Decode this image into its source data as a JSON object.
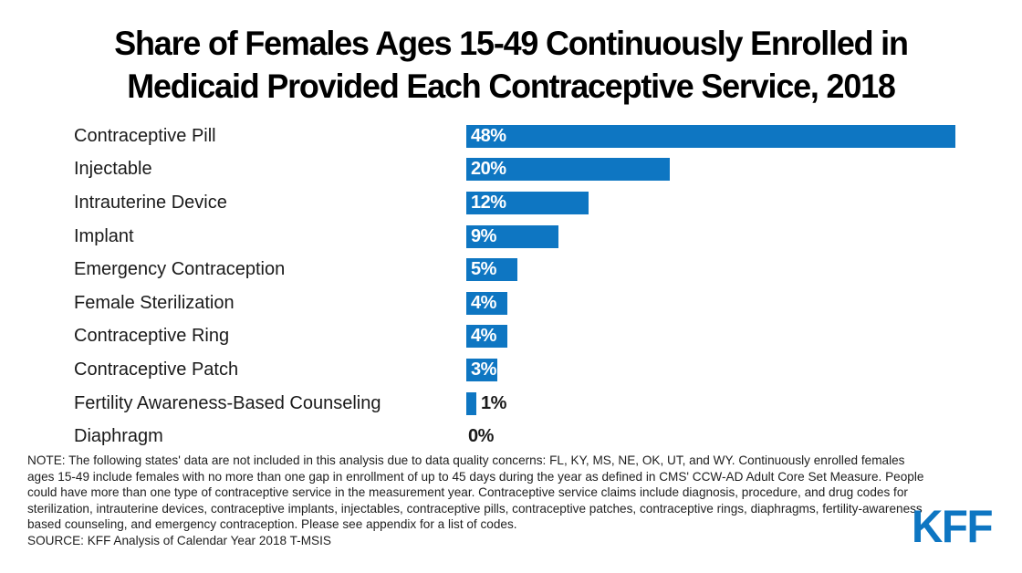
{
  "title": {
    "line1": "Share of Females Ages 15-49 Continuously Enrolled in",
    "line2": "Medicaid Provided Each Contraceptive Service, 2018"
  },
  "chart_data": {
    "type": "bar",
    "orientation": "horizontal",
    "title": "Share of Females Ages 15-49 Continuously Enrolled in Medicaid Provided Each Contraceptive Service, 2018",
    "categories": [
      "Contraceptive Pill",
      "Injectable",
      "Intrauterine Device",
      "Implant",
      "Emergency Contraception",
      "Female Sterilization",
      "Contraceptive Ring",
      "Contraceptive Patch",
      "Fertility Awareness-Based Counseling",
      "Diaphragm"
    ],
    "values": [
      48,
      20,
      12,
      9,
      5,
      4,
      4,
      3,
      1,
      0
    ],
    "value_labels": [
      "48%",
      "20%",
      "12%",
      "9%",
      "5%",
      "4%",
      "4%",
      "3%",
      "1%",
      "0%"
    ],
    "xlim": [
      0,
      48
    ],
    "grid": false,
    "legend": false,
    "bar_color": "#0E76C2",
    "value_label_inside_color": "#FFFFFF",
    "value_label_outside_color": "#1A1A1A"
  },
  "footer": {
    "note": "NOTE: The following states' data are not included in this analysis due to data quality concerns: FL, KY, MS, NE, OK, UT, and WY. Continuously enrolled females ages 15-49 include females with no more than one gap in enrollment of up to 45 days during the year as defined in CMS' CCW-AD Adult Core Set Measure. People could have more than one type of contraceptive service in the measurement year. Contraceptive service claims include diagnosis, procedure, and drug codes for sterilization, intrauterine devices, contraceptive implants, injectables, contraceptive pills, contraceptive patches, contraceptive rings, diaphragms, fertility-awareness based counseling, and emergency contraception. Please see appendix for a list of codes.",
    "source": "SOURCE: KFF Analysis of Calendar Year 2018 T-MSIS"
  },
  "branding": {
    "logo_text": "KFF",
    "logo_color": "#0E76C2"
  }
}
